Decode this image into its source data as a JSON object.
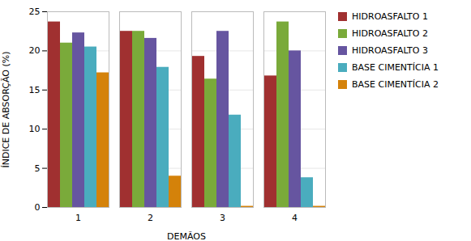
{
  "chart_data": {
    "type": "bar",
    "categories": [
      "1",
      "2",
      "3",
      "4"
    ],
    "series": [
      {
        "name": "HIDROASFALTO 1",
        "color": "#A03030",
        "values": [
          23.7,
          22.5,
          19.3,
          16.8
        ]
      },
      {
        "name": "HIDROASFALTO 2",
        "color": "#7AAA3A",
        "values": [
          21.0,
          22.5,
          16.4,
          23.7
        ]
      },
      {
        "name": "HIDROASFALTO 3",
        "color": "#6655A0",
        "values": [
          22.3,
          21.6,
          22.5,
          20.0
        ]
      },
      {
        "name": "BASE CIMENTÍCIA 1",
        "color": "#4AACBE",
        "values": [
          20.5,
          17.9,
          11.8,
          3.8
        ]
      },
      {
        "name": "BASE CIMENTÍCIA 2",
        "color": "#D4820A",
        "values": [
          17.2,
          4.0,
          0.15,
          0.15
        ]
      }
    ],
    "xlabel": "DEMÃOS",
    "ylabel": "ÍNDICE DE ABSORÇÃO (%)",
    "ylim": [
      0,
      25
    ],
    "yticks": [
      0,
      5,
      10,
      15,
      20,
      25
    ],
    "grid": true,
    "legend": "right"
  }
}
